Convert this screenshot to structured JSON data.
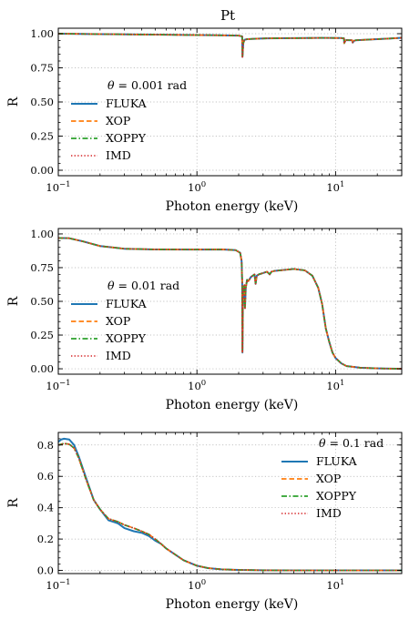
{
  "figure": {
    "title": "Pt"
  },
  "colors": {
    "FLUKA": "#1f77b4",
    "XOP": "#ff7f0e",
    "XOPPY": "#2ca02c",
    "IMD": "#d62728"
  },
  "chart_data": [
    {
      "type": "line",
      "title": "Pt",
      "xlabel": "Photon energy (keV)",
      "ylabel": "R",
      "xscale": "log",
      "xlim": [
        0.1,
        30
      ],
      "ylim": [
        -0.04,
        1.04
      ],
      "xticks": [
        0.1,
        1,
        10
      ],
      "xtick_labels": [
        {
          "base": "10",
          "exp": "−1"
        },
        {
          "base": "10",
          "exp": "0"
        },
        {
          "base": "10",
          "exp": "1"
        }
      ],
      "yticks": [
        0.0,
        0.25,
        0.5,
        0.75,
        1.0
      ],
      "ytick_labels": [
        "0.00",
        "0.25",
        "0.50",
        "0.75",
        "1.00"
      ],
      "grid": true,
      "legend": {
        "placement": "center-left",
        "annotation": "θ = 0.001 rad"
      },
      "series": [
        {
          "name": "FLUKA",
          "style": "solid"
        },
        {
          "name": "XOP",
          "style": "dashed"
        },
        {
          "name": "XOPPY",
          "style": "dashdot"
        },
        {
          "name": "IMD",
          "style": "dotted"
        }
      ],
      "x": [
        0.1,
        0.2,
        0.5,
        1.0,
        1.5,
        2.0,
        2.12,
        2.13,
        2.16,
        2.2,
        2.3,
        2.5,
        2.8,
        3.2,
        4.0,
        6.0,
        8.0,
        11.0,
        11.5,
        11.55,
        11.8,
        12.0,
        13.2,
        13.3,
        13.6,
        14.0,
        16.0,
        20.0,
        25.0,
        30.0
      ],
      "y": [
        1.0,
        0.997,
        0.993,
        0.99,
        0.988,
        0.986,
        0.98,
        0.83,
        0.93,
        0.955,
        0.96,
        0.962,
        0.964,
        0.966,
        0.967,
        0.968,
        0.969,
        0.968,
        0.966,
        0.93,
        0.952,
        0.953,
        0.952,
        0.935,
        0.948,
        0.952,
        0.955,
        0.96,
        0.965,
        0.97
      ]
    },
    {
      "type": "line",
      "xlabel": "Photon energy (keV)",
      "ylabel": "R",
      "xscale": "log",
      "xlim": [
        0.1,
        30
      ],
      "ylim": [
        -0.04,
        1.04
      ],
      "xticks": [
        0.1,
        1,
        10
      ],
      "xtick_labels": [
        {
          "base": "10",
          "exp": "−1"
        },
        {
          "base": "10",
          "exp": "0"
        },
        {
          "base": "10",
          "exp": "1"
        }
      ],
      "yticks": [
        0.0,
        0.25,
        0.5,
        0.75,
        1.0
      ],
      "ytick_labels": [
        "0.00",
        "0.25",
        "0.50",
        "0.75",
        "1.00"
      ],
      "grid": true,
      "legend": {
        "placement": "center-left",
        "annotation": "θ = 0.01 rad"
      },
      "series": [
        {
          "name": "FLUKA",
          "style": "solid"
        },
        {
          "name": "XOP",
          "style": "dashed"
        },
        {
          "name": "XOPPY",
          "style": "dashdot"
        },
        {
          "name": "IMD",
          "style": "dotted"
        }
      ],
      "x": [
        0.1,
        0.12,
        0.15,
        0.2,
        0.3,
        0.5,
        1.0,
        1.5,
        1.9,
        2.05,
        2.1,
        2.12,
        2.13,
        2.15,
        2.2,
        2.22,
        2.25,
        2.3,
        2.35,
        2.45,
        2.6,
        2.65,
        2.7,
        2.8,
        3.0,
        3.2,
        3.35,
        3.45,
        3.6,
        4.0,
        5.0,
        6.0,
        6.8,
        7.5,
        8.0,
        8.5,
        9.0,
        9.5,
        10.0,
        11.0,
        12.0,
        15.0,
        20.0,
        25.0,
        30.0
      ],
      "y": [
        0.97,
        0.968,
        0.945,
        0.91,
        0.89,
        0.885,
        0.884,
        0.885,
        0.88,
        0.86,
        0.8,
        0.65,
        0.12,
        0.58,
        0.62,
        0.45,
        0.6,
        0.66,
        0.65,
        0.68,
        0.7,
        0.63,
        0.69,
        0.7,
        0.71,
        0.72,
        0.7,
        0.72,
        0.725,
        0.73,
        0.74,
        0.73,
        0.69,
        0.6,
        0.48,
        0.3,
        0.2,
        0.12,
        0.08,
        0.04,
        0.02,
        0.008,
        0.003,
        0.001,
        0.0
      ]
    },
    {
      "type": "line",
      "xlabel": "Photon energy (keV)",
      "ylabel": "R",
      "xscale": "log",
      "xlim": [
        0.1,
        30
      ],
      "ylim": [
        -0.02,
        0.88
      ],
      "xticks": [
        0.1,
        1,
        10
      ],
      "xtick_labels": [
        {
          "base": "10",
          "exp": "−1"
        },
        {
          "base": "10",
          "exp": "0"
        },
        {
          "base": "10",
          "exp": "1"
        }
      ],
      "yticks": [
        0.0,
        0.2,
        0.4,
        0.6,
        0.8
      ],
      "ytick_labels": [
        "0.0",
        "0.2",
        "0.4",
        "0.6",
        "0.8"
      ],
      "grid": true,
      "legend": {
        "placement": "upper-right",
        "annotation": "θ = 0.1 rad"
      },
      "series": [
        {
          "name": "FLUKA",
          "style": "solid",
          "x": [
            0.1,
            0.105,
            0.11,
            0.12,
            0.13,
            0.14,
            0.16,
            0.18,
            0.2,
            0.23,
            0.27,
            0.3,
            0.35,
            0.4,
            0.45,
            0.5,
            0.55,
            0.6,
            0.7,
            0.8,
            1.0,
            1.2,
            1.5,
            2.0,
            3.0,
            5.0,
            10.0,
            30.0
          ],
          "y": [
            0.82,
            0.835,
            0.84,
            0.835,
            0.8,
            0.73,
            0.58,
            0.45,
            0.39,
            0.32,
            0.3,
            0.27,
            0.25,
            0.24,
            0.22,
            0.19,
            0.17,
            0.14,
            0.1,
            0.065,
            0.03,
            0.015,
            0.007,
            0.003,
            0.001,
            0.0,
            0.0,
            0.0
          ]
        },
        {
          "name": "XOP",
          "style": "dashed",
          "x": [
            0.1,
            0.105,
            0.11,
            0.12,
            0.13,
            0.14,
            0.16,
            0.18,
            0.2,
            0.23,
            0.27,
            0.3,
            0.35,
            0.4,
            0.45,
            0.5,
            0.55,
            0.6,
            0.7,
            0.8,
            1.0,
            1.2,
            1.5,
            2.0,
            3.0,
            5.0,
            10.0,
            30.0
          ],
          "y": [
            0.8,
            0.805,
            0.81,
            0.805,
            0.78,
            0.72,
            0.57,
            0.45,
            0.39,
            0.33,
            0.31,
            0.29,
            0.27,
            0.25,
            0.23,
            0.2,
            0.17,
            0.14,
            0.1,
            0.065,
            0.03,
            0.015,
            0.007,
            0.003,
            0.001,
            0.0,
            0.0,
            0.0
          ]
        },
        {
          "name": "XOPPY",
          "style": "dashdot",
          "x": [
            0.1,
            0.105,
            0.11,
            0.12,
            0.13,
            0.14,
            0.16,
            0.18,
            0.2,
            0.23,
            0.27,
            0.3,
            0.35,
            0.4,
            0.45,
            0.5,
            0.55,
            0.6,
            0.7,
            0.8,
            1.0,
            1.2,
            1.5,
            2.0,
            3.0,
            5.0,
            10.0,
            30.0
          ],
          "y": [
            0.8,
            0.805,
            0.81,
            0.805,
            0.78,
            0.72,
            0.57,
            0.45,
            0.39,
            0.33,
            0.31,
            0.29,
            0.27,
            0.25,
            0.23,
            0.2,
            0.17,
            0.14,
            0.1,
            0.065,
            0.03,
            0.015,
            0.007,
            0.003,
            0.001,
            0.0,
            0.0,
            0.0
          ]
        },
        {
          "name": "IMD",
          "style": "dotted",
          "x": [
            0.1,
            0.105,
            0.11,
            0.12,
            0.13,
            0.14,
            0.16,
            0.18,
            0.2,
            0.23,
            0.27,
            0.3,
            0.35,
            0.4,
            0.45,
            0.5,
            0.55,
            0.6,
            0.7,
            0.8,
            1.0,
            1.2,
            1.5,
            2.0,
            3.0,
            5.0,
            10.0,
            30.0
          ],
          "y": [
            0.8,
            0.805,
            0.81,
            0.805,
            0.78,
            0.72,
            0.57,
            0.45,
            0.39,
            0.33,
            0.31,
            0.29,
            0.27,
            0.25,
            0.23,
            0.2,
            0.17,
            0.14,
            0.1,
            0.065,
            0.03,
            0.015,
            0.007,
            0.003,
            0.001,
            0.0,
            0.0,
            0.0
          ]
        }
      ]
    }
  ]
}
